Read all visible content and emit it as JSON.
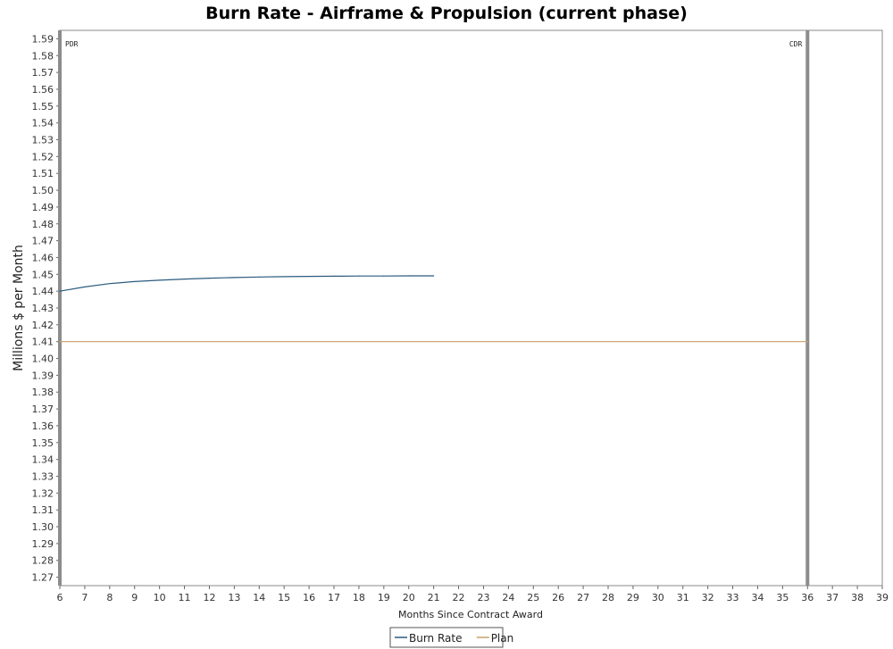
{
  "chart_data": {
    "type": "line",
    "title": "Burn Rate - Airframe & Propulsion (current phase)",
    "xlabel": "Months Since Contract Award",
    "ylabel": "Millions $ per Month",
    "xlim": [
      6,
      39
    ],
    "ylim": [
      1.265,
      1.595
    ],
    "x_ticks": [
      6,
      7,
      8,
      9,
      10,
      11,
      12,
      13,
      14,
      15,
      16,
      17,
      18,
      19,
      20,
      21,
      22,
      23,
      24,
      25,
      26,
      27,
      28,
      29,
      30,
      31,
      32,
      33,
      34,
      35,
      36,
      37,
      38,
      39
    ],
    "y_ticks": [
      1.27,
      1.28,
      1.29,
      1.3,
      1.31,
      1.32,
      1.33,
      1.34,
      1.35,
      1.36,
      1.37,
      1.38,
      1.39,
      1.4,
      1.41,
      1.42,
      1.43,
      1.44,
      1.45,
      1.46,
      1.47,
      1.48,
      1.49,
      1.5,
      1.51,
      1.52,
      1.53,
      1.54,
      1.55,
      1.56,
      1.57,
      1.58,
      1.59
    ],
    "grid": false,
    "legend_position": "bottom",
    "series": [
      {
        "name": "Burn Rate",
        "color": "#2b5b7e",
        "x": [
          6,
          7,
          8,
          9,
          10,
          11,
          12,
          13,
          14,
          15,
          16,
          17,
          18,
          19,
          20,
          21
        ],
        "y": [
          1.44,
          1.4425,
          1.4445,
          1.4457,
          1.4465,
          1.4472,
          1.4477,
          1.4481,
          1.4484,
          1.4486,
          1.4488,
          1.4489,
          1.449,
          1.449,
          1.4491,
          1.4491
        ]
      },
      {
        "name": "Plan",
        "color": "#c8a06a",
        "x": [
          6,
          36
        ],
        "y": [
          1.41,
          1.41
        ]
      }
    ],
    "markers": [
      {
        "label": "PDR",
        "x": 6,
        "color": "#8c8c8c"
      },
      {
        "label": "CDR",
        "x": 36,
        "color": "#8c8c8c"
      }
    ]
  }
}
